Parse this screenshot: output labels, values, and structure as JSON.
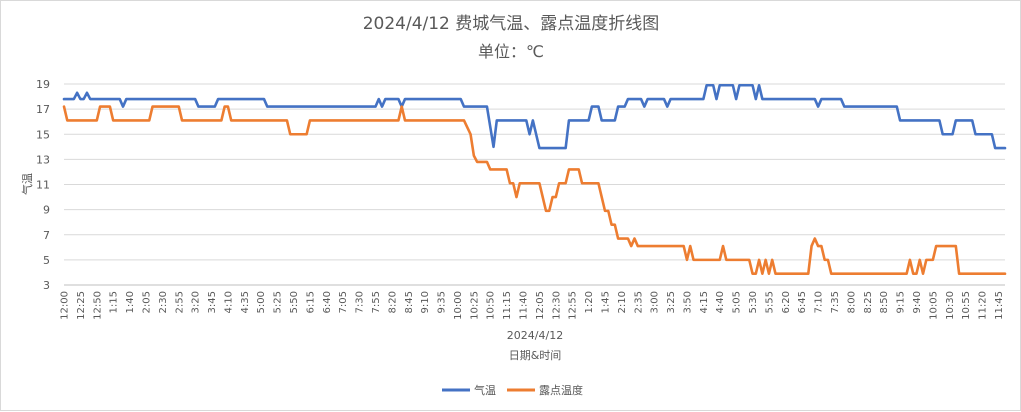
{
  "chart_data": {
    "type": "line",
    "title": "2024/4/12 费城气温、露点温度折线图",
    "subtitle": "单位：℃",
    "xlabel": "日期&时间",
    "xgroup": "2024/4/12",
    "ylabel": "气温",
    "ylim": [
      3,
      19
    ],
    "yticks": [
      3,
      5,
      7,
      9,
      11,
      13,
      15,
      17,
      19
    ],
    "grid": "horizontal",
    "legend": "bottom",
    "x_tick_labels": [
      "12:00",
      "12:25",
      "12:50",
      "1:15",
      "1:40",
      "2:05",
      "2:30",
      "2:55",
      "3:20",
      "3:45",
      "4:10",
      "4:35",
      "5:00",
      "5:25",
      "5:50",
      "6:15",
      "6:40",
      "7:05",
      "7:30",
      "7:55",
      "8:20",
      "8:45",
      "9:10",
      "9:35",
      "10:00",
      "10:25",
      "10:50",
      "11:15",
      "11:40",
      "12:05",
      "12:30",
      "12:55",
      "1:20",
      "1:45",
      "2:10",
      "2:35",
      "3:00",
      "3:25",
      "3:50",
      "4:15",
      "4:40",
      "5:05",
      "5:30",
      "5:55",
      "6:20",
      "6:45",
      "7:10",
      "7:35",
      "8:00",
      "8:25",
      "8:50",
      "9:15",
      "9:40",
      "10:05",
      "10:30",
      "10:55",
      "11:20",
      "11:45"
    ],
    "n_points": 288,
    "series": [
      {
        "name": "气温",
        "color": "#4472C4",
        "segments": [
          [
            0,
            17.8
          ],
          [
            3,
            17.8
          ],
          [
            4,
            18.3
          ],
          [
            5,
            17.8
          ],
          [
            6,
            17.8
          ],
          [
            7,
            18.3
          ],
          [
            8,
            17.8
          ],
          [
            17,
            17.8
          ],
          [
            18,
            17.2
          ],
          [
            19,
            17.8
          ],
          [
            40,
            17.8
          ],
          [
            41,
            17.2
          ],
          [
            46,
            17.2
          ],
          [
            47,
            17.8
          ],
          [
            61,
            17.8
          ],
          [
            62,
            17.2
          ],
          [
            95,
            17.2
          ],
          [
            96,
            17.8
          ],
          [
            97,
            17.2
          ],
          [
            98,
            17.8
          ],
          [
            102,
            17.8
          ],
          [
            103,
            17.2
          ],
          [
            104,
            17.8
          ],
          [
            121,
            17.8
          ],
          [
            122,
            17.2
          ],
          [
            129,
            17.2
          ],
          [
            131,
            14.0
          ],
          [
            132,
            16.1
          ],
          [
            141,
            16.1
          ],
          [
            142,
            15.0
          ],
          [
            143,
            16.1
          ],
          [
            144,
            15.0
          ],
          [
            145,
            13.9
          ],
          [
            153,
            13.9
          ],
          [
            154,
            16.1
          ],
          [
            160,
            16.1
          ],
          [
            161,
            17.2
          ],
          [
            163,
            17.2
          ],
          [
            164,
            16.1
          ],
          [
            168,
            16.1
          ],
          [
            169,
            17.2
          ],
          [
            171,
            17.2
          ],
          [
            172,
            17.8
          ],
          [
            176,
            17.8
          ],
          [
            177,
            17.2
          ],
          [
            178,
            17.8
          ],
          [
            183,
            17.8
          ],
          [
            184,
            17.2
          ],
          [
            185,
            17.8
          ],
          [
            195,
            17.8
          ],
          [
            196,
            18.9
          ],
          [
            198,
            18.9
          ],
          [
            199,
            17.8
          ],
          [
            200,
            18.9
          ],
          [
            204,
            18.9
          ],
          [
            205,
            17.8
          ],
          [
            206,
            18.9
          ],
          [
            210,
            18.9
          ],
          [
            211,
            17.8
          ],
          [
            212,
            18.9
          ],
          [
            213,
            17.8
          ],
          [
            229,
            17.8
          ],
          [
            230,
            17.2
          ],
          [
            231,
            17.8
          ],
          [
            237,
            17.8
          ],
          [
            238,
            17.2
          ],
          [
            254,
            17.2
          ],
          [
            255,
            16.1
          ],
          [
            267,
            16.1
          ],
          [
            268,
            15.0
          ],
          [
            271,
            15.0
          ],
          [
            272,
            16.1
          ],
          [
            277,
            16.1
          ],
          [
            278,
            15.0
          ],
          [
            283,
            15.0
          ],
          [
            284,
            13.9
          ],
          [
            287,
            13.9
          ]
        ]
      },
      {
        "name": "露点温度",
        "color": "#ED7D31",
        "segments": [
          [
            0,
            17.2
          ],
          [
            1,
            16.1
          ],
          [
            10,
            16.1
          ],
          [
            11,
            17.2
          ],
          [
            14,
            17.2
          ],
          [
            15,
            16.1
          ],
          [
            26,
            16.1
          ],
          [
            27,
            17.2
          ],
          [
            35,
            17.2
          ],
          [
            36,
            16.1
          ],
          [
            48,
            16.1
          ],
          [
            49,
            17.2
          ],
          [
            50,
            17.2
          ],
          [
            51,
            16.1
          ],
          [
            68,
            16.1
          ],
          [
            69,
            15.0
          ],
          [
            74,
            15.0
          ],
          [
            75,
            16.1
          ],
          [
            102,
            16.1
          ],
          [
            103,
            17.2
          ],
          [
            104,
            16.1
          ],
          [
            122,
            16.1
          ],
          [
            124,
            15.0
          ],
          [
            125,
            13.3
          ],
          [
            126,
            12.8
          ],
          [
            129,
            12.8
          ],
          [
            130,
            12.2
          ],
          [
            135,
            12.2
          ],
          [
            136,
            11.1
          ],
          [
            137,
            11.1
          ],
          [
            138,
            10.0
          ],
          [
            139,
            11.1
          ],
          [
            145,
            11.1
          ],
          [
            146,
            10.0
          ],
          [
            147,
            8.9
          ],
          [
            148,
            8.9
          ],
          [
            149,
            10.0
          ],
          [
            150,
            10.0
          ],
          [
            151,
            11.1
          ],
          [
            153,
            11.1
          ],
          [
            154,
            12.2
          ],
          [
            157,
            12.2
          ],
          [
            158,
            11.1
          ],
          [
            163,
            11.1
          ],
          [
            164,
            10.0
          ],
          [
            165,
            8.9
          ],
          [
            166,
            8.9
          ],
          [
            167,
            7.8
          ],
          [
            168,
            7.8
          ],
          [
            169,
            6.7
          ],
          [
            172,
            6.7
          ],
          [
            173,
            6.1
          ],
          [
            174,
            6.7
          ],
          [
            175,
            6.1
          ],
          [
            189,
            6.1
          ],
          [
            190,
            5.0
          ],
          [
            191,
            6.1
          ],
          [
            192,
            5.0
          ],
          [
            200,
            5.0
          ],
          [
            201,
            6.1
          ],
          [
            202,
            5.0
          ],
          [
            209,
            5.0
          ],
          [
            210,
            3.9
          ],
          [
            211,
            3.9
          ],
          [
            212,
            5.0
          ],
          [
            213,
            3.9
          ],
          [
            214,
            5.0
          ],
          [
            215,
            3.9
          ],
          [
            216,
            5.0
          ],
          [
            217,
            3.9
          ],
          [
            227,
            3.9
          ],
          [
            228,
            6.1
          ],
          [
            229,
            6.7
          ],
          [
            230,
            6.1
          ],
          [
            231,
            6.1
          ],
          [
            232,
            5.0
          ],
          [
            233,
            5.0
          ],
          [
            234,
            3.9
          ],
          [
            257,
            3.9
          ],
          [
            258,
            5.0
          ],
          [
            259,
            3.9
          ],
          [
            260,
            3.9
          ],
          [
            261,
            5.0
          ],
          [
            262,
            3.9
          ],
          [
            263,
            5.0
          ],
          [
            265,
            5.0
          ],
          [
            266,
            6.1
          ],
          [
            272,
            6.1
          ],
          [
            273,
            3.9
          ],
          [
            287,
            3.9
          ]
        ]
      }
    ]
  }
}
